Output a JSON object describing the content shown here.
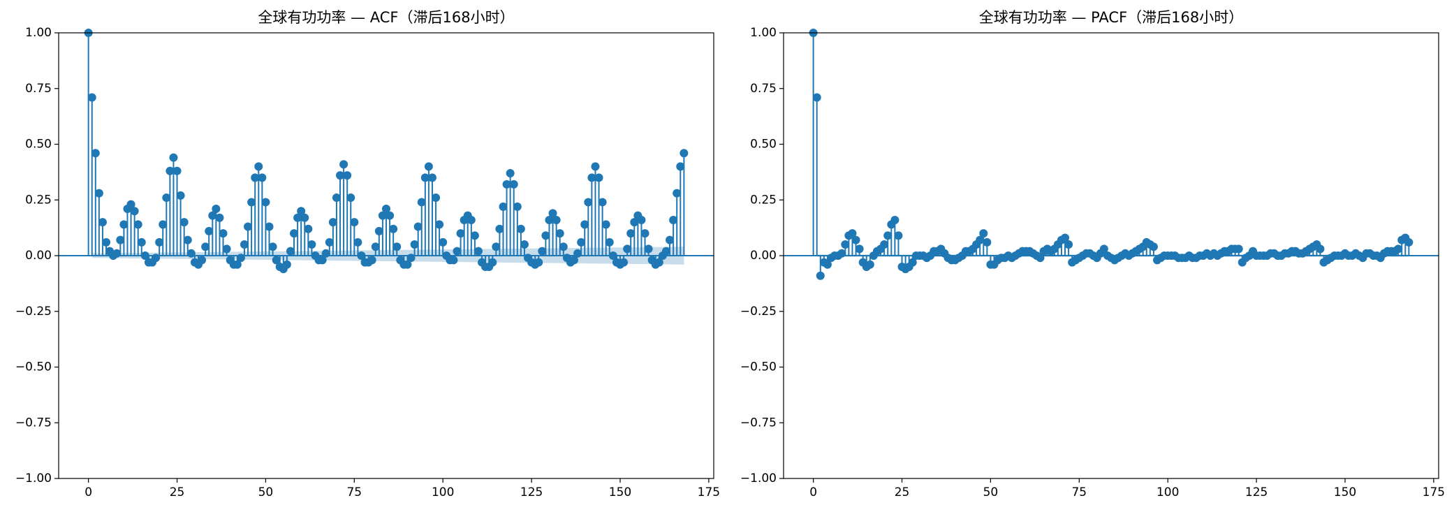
{
  "chart_data": [
    {
      "type": "stem",
      "title": "全球有功功率 — ACF（滞后168小时）",
      "color": "#1f77b4",
      "xlim": [
        -8.4,
        176.4
      ],
      "xticks": [
        0,
        25,
        50,
        75,
        100,
        125,
        150,
        175
      ],
      "ylim": [
        -1,
        1
      ],
      "yticks": [
        {
          "value": -1,
          "label": "−1.00"
        },
        {
          "value": -0.75,
          "label": "−0.75"
        },
        {
          "value": -0.5,
          "label": "−0.50"
        },
        {
          "value": -0.25,
          "label": "−0.25"
        },
        {
          "value": 0,
          "label": "0.00"
        },
        {
          "value": 0.25,
          "label": "0.25"
        },
        {
          "value": 0.5,
          "label": "0.50"
        },
        {
          "value": 0.75,
          "label": "0.75"
        },
        {
          "value": 1,
          "label": "1.00"
        }
      ],
      "conf_x": [
        1,
        168
      ],
      "conf_upper": [
        0.01,
        0.04
      ],
      "conf_lower": [
        -0.01,
        -0.04
      ],
      "values": [
        1.0,
        0.71,
        0.46,
        0.28,
        0.15,
        0.06,
        0.02,
        0.0,
        0.01,
        0.07,
        0.14,
        0.21,
        0.23,
        0.2,
        0.14,
        0.06,
        0.0,
        -0.03,
        -0.03,
        -0.01,
        0.06,
        0.14,
        0.26,
        0.38,
        0.44,
        0.38,
        0.27,
        0.15,
        0.07,
        0.01,
        -0.03,
        -0.04,
        -0.02,
        0.04,
        0.11,
        0.18,
        0.21,
        0.17,
        0.1,
        0.03,
        -0.02,
        -0.04,
        -0.04,
        -0.01,
        0.05,
        0.13,
        0.24,
        0.35,
        0.4,
        0.35,
        0.24,
        0.13,
        0.04,
        -0.02,
        -0.05,
        -0.06,
        -0.04,
        0.02,
        0.1,
        0.17,
        0.2,
        0.17,
        0.12,
        0.05,
        0.0,
        -0.02,
        -0.02,
        0.01,
        0.06,
        0.15,
        0.26,
        0.36,
        0.41,
        0.36,
        0.26,
        0.15,
        0.06,
        0.0,
        -0.03,
        -0.03,
        -0.02,
        0.04,
        0.11,
        0.18,
        0.21,
        0.18,
        0.12,
        0.04,
        -0.02,
        -0.04,
        -0.04,
        -0.01,
        0.05,
        0.13,
        0.24,
        0.35,
        0.4,
        0.35,
        0.26,
        0.14,
        0.06,
        0.0,
        -0.02,
        -0.02,
        0.02,
        0.1,
        0.16,
        0.18,
        0.16,
        0.09,
        0.02,
        -0.03,
        -0.05,
        -0.05,
        -0.03,
        0.04,
        0.12,
        0.22,
        0.32,
        0.37,
        0.32,
        0.22,
        0.12,
        0.05,
        -0.01,
        -0.03,
        -0.04,
        -0.03,
        0.02,
        0.09,
        0.16,
        0.19,
        0.16,
        0.1,
        0.04,
        -0.01,
        -0.03,
        -0.02,
        0.01,
        0.06,
        0.14,
        0.24,
        0.35,
        0.4,
        0.35,
        0.24,
        0.14,
        0.06,
        0.0,
        -0.03,
        -0.04,
        -0.03,
        0.03,
        0.1,
        0.15,
        0.18,
        0.16,
        0.1,
        0.03,
        -0.02,
        -0.04,
        -0.03,
        0.0,
        0.02,
        0.07,
        0.16,
        0.28,
        0.4,
        0.46
      ]
    },
    {
      "type": "stem",
      "title": "全球有功功率 — PACF（滞后168小时）",
      "color": "#1f77b4",
      "xlim": [
        -8.4,
        176.4
      ],
      "xticks": [
        0,
        25,
        50,
        75,
        100,
        125,
        150,
        175
      ],
      "ylim": [
        -1,
        1
      ],
      "yticks": [
        {
          "value": -1,
          "label": "−1.00"
        },
        {
          "value": -0.75,
          "label": "−0.75"
        },
        {
          "value": -0.5,
          "label": "−0.50"
        },
        {
          "value": -0.25,
          "label": "−0.25"
        },
        {
          "value": 0,
          "label": "0.00"
        },
        {
          "value": 0.25,
          "label": "0.25"
        },
        {
          "value": 0.5,
          "label": "0.50"
        },
        {
          "value": 0.75,
          "label": "0.75"
        },
        {
          "value": 1,
          "label": "1.00"
        }
      ],
      "conf_x": [
        1,
        168
      ],
      "conf_upper": [
        0.005,
        0.005
      ],
      "conf_lower": [
        -0.005,
        -0.005
      ],
      "values": [
        1.0,
        0.71,
        -0.09,
        -0.03,
        -0.04,
        -0.01,
        0.0,
        0.0,
        0.01,
        0.05,
        0.09,
        0.1,
        0.07,
        0.03,
        -0.03,
        -0.05,
        -0.04,
        0.0,
        0.02,
        0.03,
        0.05,
        0.09,
        0.14,
        0.16,
        0.09,
        -0.05,
        -0.06,
        -0.05,
        -0.03,
        0.0,
        0.0,
        0.0,
        -0.01,
        0.0,
        0.02,
        0.02,
        0.03,
        0.01,
        -0.01,
        -0.02,
        -0.02,
        -0.01,
        0.0,
        0.02,
        0.02,
        0.03,
        0.05,
        0.07,
        0.1,
        0.06,
        -0.04,
        -0.04,
        -0.02,
        -0.01,
        -0.01,
        0.0,
        -0.01,
        0.0,
        0.01,
        0.02,
        0.02,
        0.02,
        0.01,
        0.0,
        -0.01,
        0.02,
        0.03,
        0.02,
        0.03,
        0.05,
        0.07,
        0.08,
        0.05,
        -0.03,
        -0.02,
        -0.01,
        0.0,
        0.01,
        0.01,
        0.0,
        -0.01,
        0.01,
        0.03,
        0.0,
        -0.01,
        -0.02,
        -0.01,
        0.0,
        0.01,
        0.0,
        0.01,
        0.02,
        0.03,
        0.04,
        0.06,
        0.05,
        0.04,
        -0.02,
        -0.01,
        0.0,
        0.0,
        0.0,
        0.0,
        -0.01,
        -0.01,
        -0.01,
        0.0,
        -0.01,
        -0.01,
        0.0,
        0.0,
        0.01,
        0.0,
        0.01,
        0.0,
        0.01,
        0.02,
        0.02,
        0.03,
        0.03,
        0.03,
        -0.03,
        -0.01,
        0.0,
        0.02,
        0.0,
        0.0,
        0.0,
        0.0,
        0.01,
        0.01,
        0.0,
        0.0,
        0.01,
        0.01,
        0.02,
        0.02,
        0.01,
        0.01,
        0.02,
        0.03,
        0.04,
        0.05,
        0.03,
        -0.03,
        -0.02,
        -0.01,
        0.0,
        0.0,
        0.0,
        0.01,
        0.0,
        0.0,
        0.01,
        0.0,
        -0.01,
        0.01,
        0.01,
        0.0,
        0.0,
        -0.01,
        0.01,
        0.02,
        0.02,
        0.02,
        0.03,
        0.07,
        0.08,
        0.06
      ]
    }
  ]
}
